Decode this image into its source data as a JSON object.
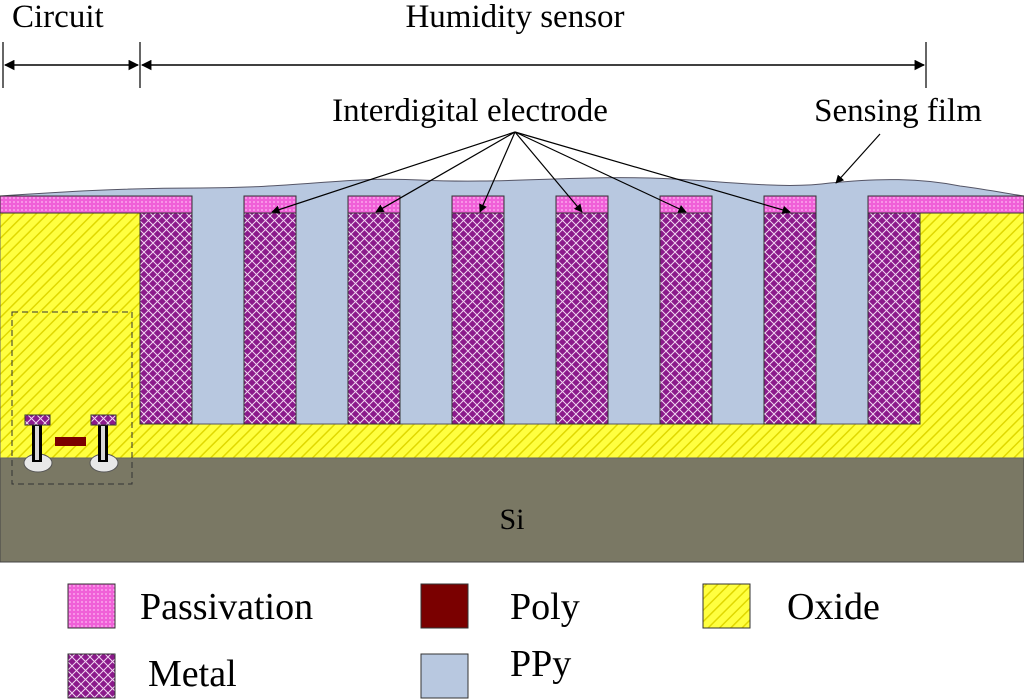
{
  "labels": {
    "circuit": "Circuit",
    "humidity_sensor": "Humidity sensor",
    "interdigital_electrode": "Interdigital electrode",
    "sensing_film": "Sensing film",
    "substrate": "Si"
  },
  "legend": [
    {
      "key": "passivation",
      "label": "Passivation",
      "pattern": "dots",
      "color": "#f060d8"
    },
    {
      "key": "poly",
      "label": "Poly",
      "pattern": "solid",
      "color": "#7a0000"
    },
    {
      "key": "oxide",
      "label": "Oxide",
      "pattern": "hatch",
      "color": "#ffff40"
    },
    {
      "key": "metal",
      "label": "Metal",
      "pattern": "crosshatch",
      "color": "#8b1a8b"
    },
    {
      "key": "ppy",
      "label": "PPy",
      "pattern": "solid",
      "color": "#b8c8e0"
    }
  ],
  "colors": {
    "silicon": "#7a7864",
    "oxide": "#ffff40",
    "metal": "#8b1a8b",
    "passivation": "#f060d8",
    "ppy": "#b8c8e0",
    "poly": "#7a0000"
  }
}
